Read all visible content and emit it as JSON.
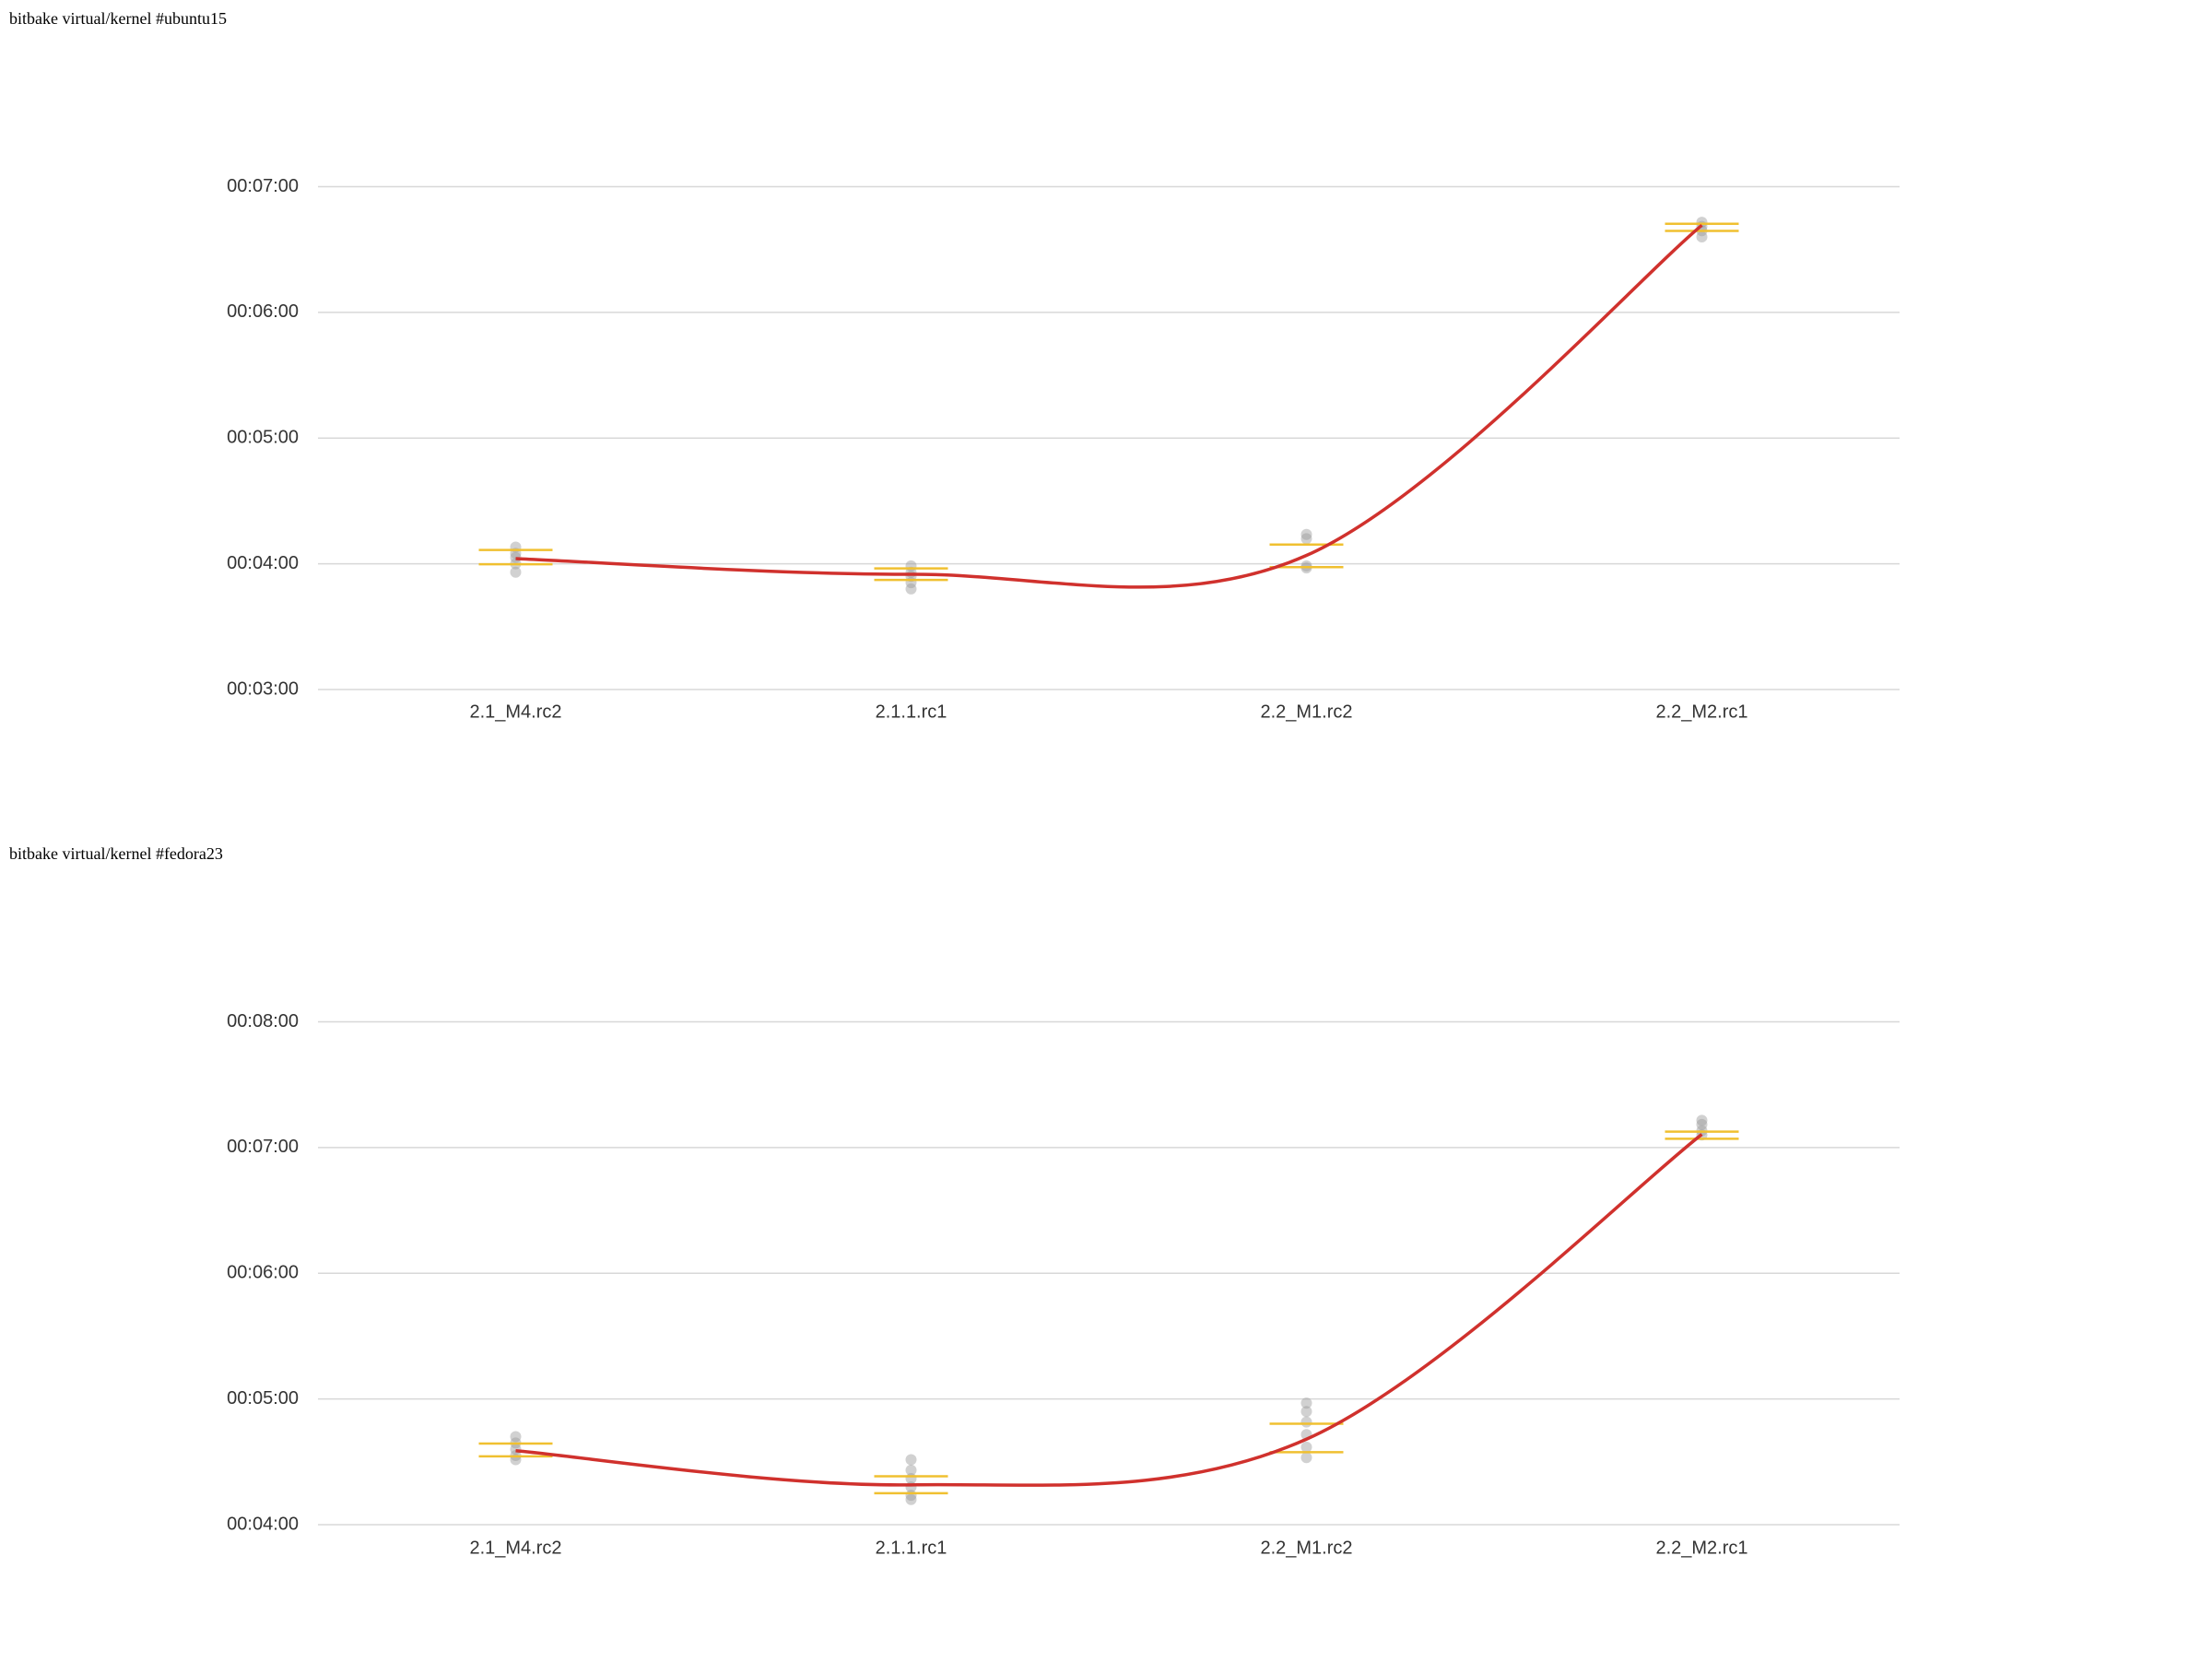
{
  "chart_data": [
    {
      "type": "line",
      "title": "bitbake virtual/kernel #ubuntu15",
      "categories": [
        "2.1_M4.rc2",
        "2.1.1.rc1",
        "2.2_M1.rc2",
        "2.2_M2.rc1"
      ],
      "values": [
        242.5,
        235,
        244,
        401.6
      ],
      "interval_low": [
        239.8,
        232.3,
        238.4,
        398.9
      ],
      "interval_high": [
        246.6,
        237.8,
        249.2,
        402.3
      ],
      "samples": [
        [
          248,
          245,
          243,
          240,
          236
        ],
        [
          239,
          236,
          234,
          231,
          228
        ],
        [
          254,
          252,
          239,
          238
        ],
        [
          403,
          401,
          399,
          396
        ]
      ],
      "color": "#d0312d",
      "interval_color": "#f0c030",
      "sample_color": "#9a9a9a",
      "ylim": [
        180,
        420
      ],
      "yticks": [
        {
          "value": 180,
          "label": "00:03:00"
        },
        {
          "value": 240,
          "label": "00:04:00"
        },
        {
          "value": 300,
          "label": "00:05:00"
        },
        {
          "value": 360,
          "label": "00:06:00"
        },
        {
          "value": 420,
          "label": "00:07:00"
        }
      ],
      "grid": true
    },
    {
      "type": "line",
      "title": "bitbake virtual/kernel #fedora23",
      "categories": [
        "2.1_M4.rc2",
        "2.1.1.rc1",
        "2.2_M1.rc2",
        "2.2_M2.rc1"
      ],
      "values": [
        275.3,
        259,
        280.8,
        426.3
      ],
      "interval_low": [
        272.6,
        255,
        274.6,
        424.2
      ],
      "interval_high": [
        278.7,
        263.1,
        288.2,
        427.6
      ],
      "samples": [
        [
          282,
          279,
          276,
          273,
          271
        ],
        [
          271,
          266,
          262,
          258,
          254,
          252
        ],
        [
          298,
          294,
          289,
          283,
          277,
          272
        ],
        [
          433,
          431,
          428,
          426
        ]
      ],
      "color": "#d0312d",
      "interval_color": "#f0c030",
      "sample_color": "#9a9a9a",
      "ylim": [
        240,
        480
      ],
      "yticks": [
        {
          "value": 240,
          "label": "00:04:00"
        },
        {
          "value": 300,
          "label": "00:05:00"
        },
        {
          "value": 360,
          "label": "00:06:00"
        },
        {
          "value": 420,
          "label": "00:07:00"
        },
        {
          "value": 480,
          "label": "00:08:00"
        }
      ],
      "grid": true
    }
  ]
}
